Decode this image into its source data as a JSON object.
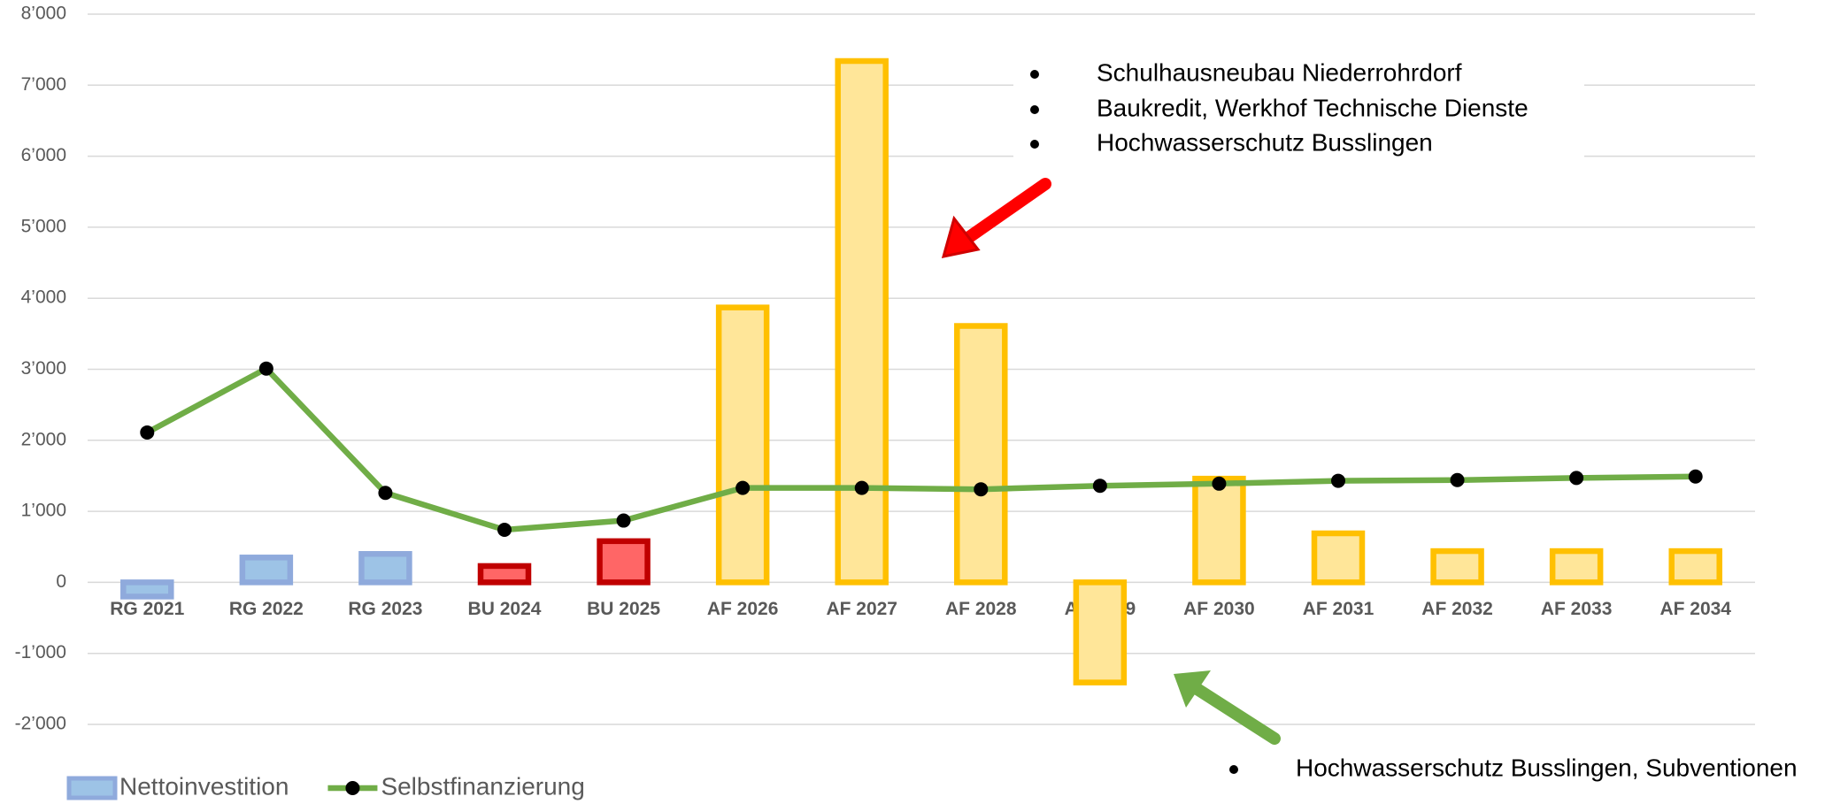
{
  "chart_data": {
    "type": "bar+line",
    "categories": [
      "RG 2021",
      "RG 2022",
      "RG 2023",
      "BU 2024",
      "BU 2025",
      "AF 2026",
      "AF 2027",
      "AF 2028",
      "AF 2029",
      "AF 2030",
      "AF 2031",
      "AF 2032",
      "AF 2033",
      "AF 2034"
    ],
    "series": [
      {
        "name": "Nettoinvestition",
        "type": "bar",
        "color": "#9dc3e6",
        "edge_color": "#8faadc",
        "colors": [
          "#9dc3e6",
          "#9dc3e6",
          "#9dc3e6",
          "#ff6666",
          "#ff6666",
          "#ffe699",
          "#ffe699",
          "#ffe699",
          "#ffe699",
          "#ffe699",
          "#ffe699",
          "#ffe699",
          "#ffe699",
          "#ffe699"
        ],
        "edge_colors": [
          "#8faadc",
          "#8faadc",
          "#8faadc",
          "#c00000",
          "#c00000",
          "#ffc000",
          "#ffc000",
          "#ffc000",
          "#ffc000",
          "#ffc000",
          "#ffc000",
          "#ffc000",
          "#ffc000",
          "#ffc000"
        ],
        "values": [
          -200,
          350,
          400,
          230,
          580,
          3870,
          7340,
          3610,
          -1410,
          1460,
          690,
          440,
          440,
          440
        ]
      },
      {
        "name": "Selbstfinanzierung",
        "type": "line",
        "color": "#70ad47",
        "marker_color": "#000000",
        "values": [
          2110,
          3010,
          1260,
          740,
          870,
          1330,
          1330,
          1310,
          1360,
          1390,
          1430,
          1440,
          1470,
          1490
        ]
      }
    ],
    "ylim": [
      -2000,
      8000
    ],
    "yticks": [
      {
        "value": -2000,
        "label": "-2’000"
      },
      {
        "value": -1000,
        "label": "-1’000"
      },
      0,
      {
        "value": 1000,
        "label": "1’000"
      },
      {
        "value": 2000,
        "label": "2’000"
      },
      {
        "value": 3000,
        "label": "3’000"
      },
      {
        "value": 4000,
        "label": "4’000"
      },
      {
        "value": 5000,
        "label": "5’000"
      },
      {
        "value": 6000,
        "label": "6’000"
      },
      {
        "value": 7000,
        "label": "7’000"
      },
      {
        "value": 8000,
        "label": "8’000"
      }
    ],
    "grid": true,
    "legend": "bottom-left",
    "annotations": [
      "Schulhausneubau Niederrohrdorf",
      "Baukredit, Werkhof Technische Dienste",
      "Hochwasserschutz Busslingen",
      "Hochwasserschutz Busslingen, Subventionen"
    ]
  }
}
